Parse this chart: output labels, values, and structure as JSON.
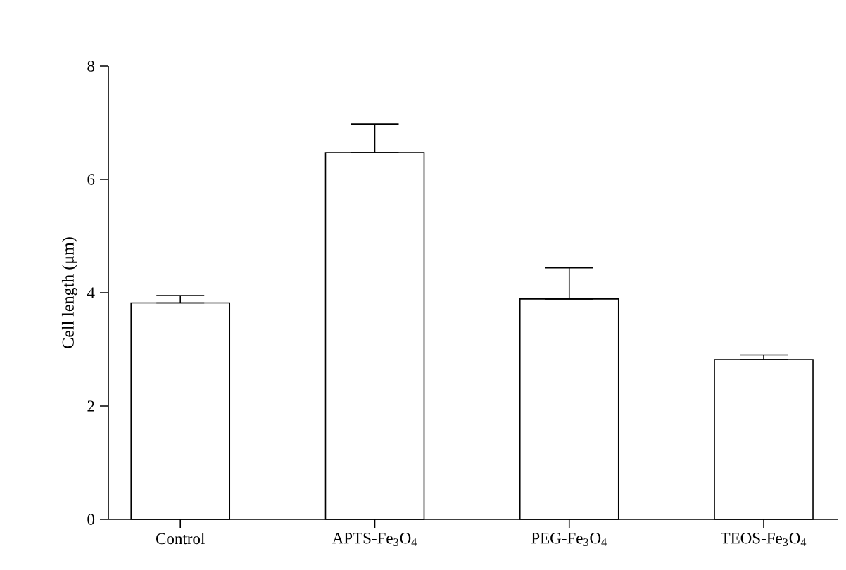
{
  "chart_data": {
    "type": "bar",
    "ylabel": "Cell length (μm)",
    "categories": [
      "Control",
      "APTS-Fe$_{3}$O$_{4}$",
      "PEG-Fe$_{3}$O$_{4}$",
      "TEOS-Fe$_{3}$O$_{4}$"
    ],
    "values": [
      3.82,
      6.47,
      3.89,
      2.82
    ],
    "errors": [
      [
        3.82,
        3.95
      ],
      [
        6.47,
        6.98
      ],
      [
        3.89,
        4.44
      ],
      [
        2.82,
        2.9
      ]
    ],
    "colors": [
      "#ffffff",
      "#ffffff",
      "#ffffff",
      "#ffffff"
    ],
    "ylim": [
      0,
      8
    ],
    "yticks": [
      0,
      2,
      4,
      6,
      8
    ],
    "grid": false
  }
}
